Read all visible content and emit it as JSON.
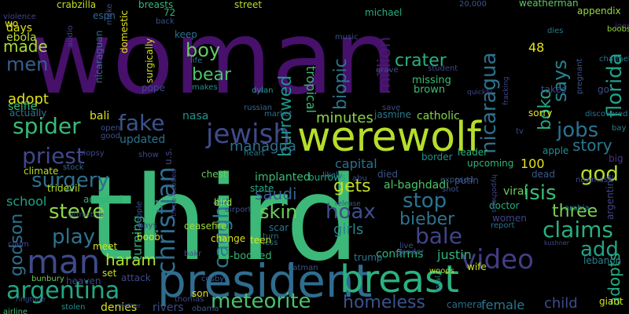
{
  "wordcloud": {
    "background": "#000000",
    "words": [
      {
        "text": "woman",
        "color": "#46106b"
      },
      {
        "text": "third",
        "color": "#3cb878"
      },
      {
        "text": "president",
        "color": "#2f6d8e"
      },
      {
        "text": "werewolf",
        "color": "#b6de2b"
      },
      {
        "text": "breast",
        "color": "#2cb07f"
      },
      {
        "text": "man",
        "color": "#3f4a8a"
      },
      {
        "text": "argentina",
        "color": "#22a884"
      },
      {
        "text": "jewish",
        "color": "#3f4a8a"
      },
      {
        "text": "christian",
        "color": "#2e6f8e"
      },
      {
        "text": "meteorite",
        "color": "#4ac16d"
      },
      {
        "text": "homeless",
        "color": "#3b528b"
      },
      {
        "text": "video",
        "color": "#433d84"
      },
      {
        "text": "fake",
        "color": "#3a548c"
      },
      {
        "text": "surgery",
        "color": "#2e6f8e"
      },
      {
        "text": "spider",
        "color": "#3aba76"
      },
      {
        "text": "priest",
        "color": "#3f4889"
      },
      {
        "text": "steve",
        "color": "#8bd646"
      },
      {
        "text": "play",
        "color": "#2c738e"
      },
      {
        "text": "claims",
        "color": "#29af7f"
      },
      {
        "text": "bale",
        "color": "#414487"
      },
      {
        "text": "skin",
        "color": "#6ccd5a"
      },
      {
        "text": "hoax",
        "color": "#3d4e8a"
      },
      {
        "text": "caught",
        "color": "#2a778e"
      },
      {
        "text": "bieber",
        "color": "#2c738e"
      },
      {
        "text": "stop",
        "color": "#2c738e"
      },
      {
        "text": "isis",
        "color": "#3bbb75"
      },
      {
        "text": "three",
        "color": "#7ad151"
      },
      {
        "text": "add",
        "color": "#20a486"
      },
      {
        "text": "jobs",
        "color": "#2c728e"
      },
      {
        "text": "god",
        "color": "#b5de2b"
      },
      {
        "text": "story",
        "color": "#2a788e"
      },
      {
        "text": "nicaragua",
        "color": "#2c738e"
      },
      {
        "text": "florida",
        "color": "#1fa188"
      },
      {
        "text": "says",
        "color": "#26828e"
      },
      {
        "text": "boko",
        "color": "#22a884"
      },
      {
        "text": "crater",
        "color": "#2ab07f"
      },
      {
        "text": "million",
        "color": "#481a6c"
      },
      {
        "text": "biopic",
        "color": "#2a768e"
      },
      {
        "text": "burrowed",
        "color": "#1f958b"
      },
      {
        "text": "managua",
        "color": "#2d708e"
      },
      {
        "text": "boy",
        "color": "#63cb5f"
      },
      {
        "text": "bear",
        "color": "#4ec36b"
      },
      {
        "text": "men",
        "color": "#355f8d"
      },
      {
        "text": "made",
        "color": "#a8db34"
      },
      {
        "text": "adopt",
        "color": "#dde318"
      },
      {
        "text": "godson",
        "color": "#2d708e"
      },
      {
        "text": "haram",
        "color": "#b0dd2f"
      },
      {
        "text": "gets",
        "color": "#c2df23"
      },
      {
        "text": "minutes",
        "color": "#8bd646"
      },
      {
        "text": "saudi",
        "color": "#34618d"
      },
      {
        "text": "girls",
        "color": "#25848e"
      },
      {
        "text": "justin",
        "color": "#31b57b"
      },
      {
        "text": "adopts",
        "color": "#27ad81"
      },
      {
        "text": "female",
        "color": "#2a778e"
      },
      {
        "text": "child",
        "color": "#3e4c8a"
      },
      {
        "text": "capital",
        "color": "#2c718e"
      },
      {
        "text": "school",
        "color": "#20a386"
      },
      {
        "text": "turning",
        "color": "#2ab07f"
      },
      {
        "text": "tropical",
        "color": "#3aba76"
      },
      {
        "text": "missing",
        "color": "#3dbc74"
      },
      {
        "text": "brown",
        "color": "#3dbc74"
      },
      {
        "text": "catholic",
        "color": "#84d44b"
      },
      {
        "text": "updated",
        "color": "#2c738e"
      },
      {
        "text": "adopted",
        "color": "#2db27d"
      },
      {
        "text": "implanted",
        "color": "#3aba76"
      },
      {
        "text": "3-boobed",
        "color": "#35b779"
      },
      {
        "text": "confirms",
        "color": "#2fb47c"
      },
      {
        "text": "selfie",
        "color": "#34b679"
      },
      {
        "text": "actually",
        "color": "#2c728e"
      },
      {
        "text": "climate",
        "color": "#b8de29"
      },
      {
        "text": "tridevil",
        "color": "#b5de2b"
      },
      {
        "text": "nasa",
        "color": "#20928c"
      },
      {
        "text": "boob",
        "color": "#d8e219"
      },
      {
        "text": "meet",
        "color": "#d2e21b"
      },
      {
        "text": "set",
        "color": "#c5e021"
      },
      {
        "text": "attack",
        "color": "#3e4a89"
      },
      {
        "text": "son",
        "color": "#e7e419"
      },
      {
        "text": "rivers",
        "color": "#3d4e8a"
      },
      {
        "text": "denies",
        "color": "#d5e21a"
      },
      {
        "text": "heaven",
        "color": "#414487"
      },
      {
        "text": "bunbury",
        "color": "#6ece58"
      },
      {
        "text": "wife",
        "color": "#c8e020"
      },
      {
        "text": "giant",
        "color": "#d5e21a"
      },
      {
        "text": "days",
        "color": "#d8e219"
      },
      {
        "text": "ebola",
        "color": "#bade28"
      },
      {
        "text": "crabzilla",
        "color": "#c2df23"
      },
      {
        "text": "espn",
        "color": "#31688e"
      },
      {
        "text": "breasts",
        "color": "#35b779"
      },
      {
        "text": "street",
        "color": "#b0dd2f"
      },
      {
        "text": "michael",
        "color": "#27ad81"
      },
      {
        "text": "weatherman",
        "color": "#5ec962"
      },
      {
        "text": "appendix",
        "color": "#95d840"
      },
      {
        "text": "joan",
        "color": "#472a7a"
      },
      {
        "text": "boobs",
        "color": "#95d840"
      },
      {
        "text": "domestic",
        "color": "#e5e419"
      },
      {
        "text": "surgically",
        "color": "#d0e11c"
      },
      {
        "text": "pope",
        "color": "#3e4989"
      },
      {
        "text": "keep",
        "color": "#2d708e"
      },
      {
        "text": "nicaraguan",
        "color": "#2e6e8e"
      },
      {
        "text": "bali",
        "color": "#dde318"
      },
      {
        "text": "chest",
        "color": "#67cc5c"
      },
      {
        "text": "state",
        "color": "#22a884"
      },
      {
        "text": "bird",
        "color": "#aadc32"
      },
      {
        "text": "ceasefire",
        "color": "#a2da37"
      },
      {
        "text": "change",
        "color": "#d8e219"
      },
      {
        "text": "teen",
        "color": "#e2e418"
      },
      {
        "text": "scar",
        "color": "#2a768e"
      },
      {
        "text": "burrows",
        "color": "#22a884"
      },
      {
        "text": "border",
        "color": "#21918c"
      },
      {
        "text": "leader",
        "color": "#2fb47c"
      },
      {
        "text": "upcoming",
        "color": "#2fb47c"
      },
      {
        "text": "died",
        "color": "#3a538b"
      },
      {
        "text": "trump",
        "color": "#2a788e"
      },
      {
        "text": "release",
        "color": "#3b528b"
      },
      {
        "text": "putin",
        "color": "#3b528b"
      },
      {
        "text": "batman",
        "color": "#3a548c"
      },
      {
        "text": "woods",
        "color": "#b5de2b"
      },
      {
        "text": "camera",
        "color": "#306a8e"
      },
      {
        "text": "airline",
        "color": "#3dbc74"
      },
      {
        "text": "stolen",
        "color": "#21908d"
      },
      {
        "text": "obama",
        "color": "#38588c"
      },
      {
        "text": "thomas",
        "color": "#3e4989"
      },
      {
        "text": "cosby",
        "color": "#3a548c"
      },
      {
        "text": "lebanon",
        "color": "#26828e"
      },
      {
        "text": "dead",
        "color": "#38598c"
      },
      {
        "text": "viral",
        "color": "#6ccd5a"
      },
      {
        "text": "doctor",
        "color": "#26ad81"
      },
      {
        "text": "women",
        "color": "#404588"
      },
      {
        "text": "100",
        "color": "#e5e419"
      },
      {
        "text": "48",
        "color": "#e5e419"
      },
      {
        "text": "72",
        "color": "#31b57b"
      },
      {
        "text": "20,000",
        "color": "#39568c"
      },
      {
        "text": "al-baghdadi",
        "color": "#4ec36b"
      },
      {
        "text": "jasmine",
        "color": "#2a788e"
      },
      {
        "text": "sorry",
        "color": "#e7e419"
      },
      {
        "text": "apple",
        "color": "#21918c"
      },
      {
        "text": "arabia",
        "color": "#238a8d"
      },
      {
        "text": "argentine",
        "color": "#3f4788"
      },
      {
        "text": "takes",
        "color": "#3f4788"
      },
      {
        "text": "dylan",
        "color": "#1e9c89"
      },
      {
        "text": "russian",
        "color": "#31688e"
      },
      {
        "text": "market",
        "color": "#2d708e"
      },
      {
        "text": "heart",
        "color": "#287c8e"
      },
      {
        "text": "stock",
        "color": "#32648e"
      },
      {
        "text": "big",
        "color": "#443a83"
      },
      {
        "text": "new",
        "color": "#3e4c8a"
      },
      {
        "text": "bay",
        "color": "#25848e"
      },
      {
        "text": "go",
        "color": "#3e4c8a"
      },
      {
        "text": "life",
        "color": "#2a788e"
      },
      {
        "text": "makes",
        "color": "#20928c"
      },
      {
        "text": "music",
        "color": "#3d4e8a"
      },
      {
        "text": "grave",
        "color": "#3d4e8a"
      },
      {
        "text": "student",
        "color": "#3f4788"
      },
      {
        "text": "save",
        "color": "#3f4788"
      },
      {
        "text": "dies",
        "color": "#2a788e"
      },
      {
        "text": "pregnant",
        "color": "#3a548c"
      },
      {
        "text": "channel",
        "color": "#2c738e"
      },
      {
        "text": "discovered",
        "color": "#2c738e"
      },
      {
        "text": "mass",
        "color": "#3e4c8a"
      },
      {
        "text": "good",
        "color": "#3b528b"
      },
      {
        "text": "open",
        "color": "#3b528b"
      },
      {
        "text": "biopsy",
        "color": "#3f4788"
      },
      {
        "text": "show",
        "color": "#3f4788"
      },
      {
        "text": "people",
        "color": "#3e4c8a"
      },
      {
        "text": "pays",
        "color": "#3e4c8a"
      },
      {
        "text": "airport",
        "color": "#3e4c8a"
      },
      {
        "text": "three-boobed",
        "color": "#443a83"
      },
      {
        "text": "turn",
        "color": "#2a788e"
      },
      {
        "text": "less",
        "color": "#2a788e"
      },
      {
        "text": "total",
        "color": "#2a788e"
      },
      {
        "text": "bakr",
        "color": "#3d4e8a"
      },
      {
        "text": "abu",
        "color": "#3d4e8a"
      },
      {
        "text": "likely",
        "color": "#2c738e"
      },
      {
        "text": "exposed",
        "color": "#3a548c"
      },
      {
        "text": "shot",
        "color": "#3a548c"
      },
      {
        "text": "live",
        "color": "#3a548c"
      },
      {
        "text": "gender",
        "color": "#3a548c"
      },
      {
        "text": "report",
        "color": "#2c738e"
      },
      {
        "text": "kushner",
        "color": "#3e4c8a"
      },
      {
        "text": "violence",
        "color": "#404588"
      },
      {
        "text": "wo",
        "color": "#e5e419"
      },
      {
        "text": "mother",
        "color": "#3d4e8a"
      },
      {
        "text": "back",
        "color": "#3d4e8a"
      },
      {
        "text": "claim",
        "color": "#3e4c8a"
      },
      {
        "text": "attractive",
        "color": "#3e4c8a"
      },
      {
        "text": "ringtone",
        "color": "#3e4c8a"
      },
      {
        "text": "make",
        "color": "#3e4c8a"
      },
      {
        "text": "audio",
        "color": "#3f4788"
      },
      {
        "text": "tv",
        "color": "#3f4788"
      },
      {
        "text": "u.s.",
        "color": "#3f4788"
      },
      {
        "text": "hypothesis",
        "color": "#3f4788"
      },
      {
        "text": "quickly",
        "color": "#3f4788"
      },
      {
        "text": "fracking",
        "color": "#3f4788"
      }
    ]
  }
}
